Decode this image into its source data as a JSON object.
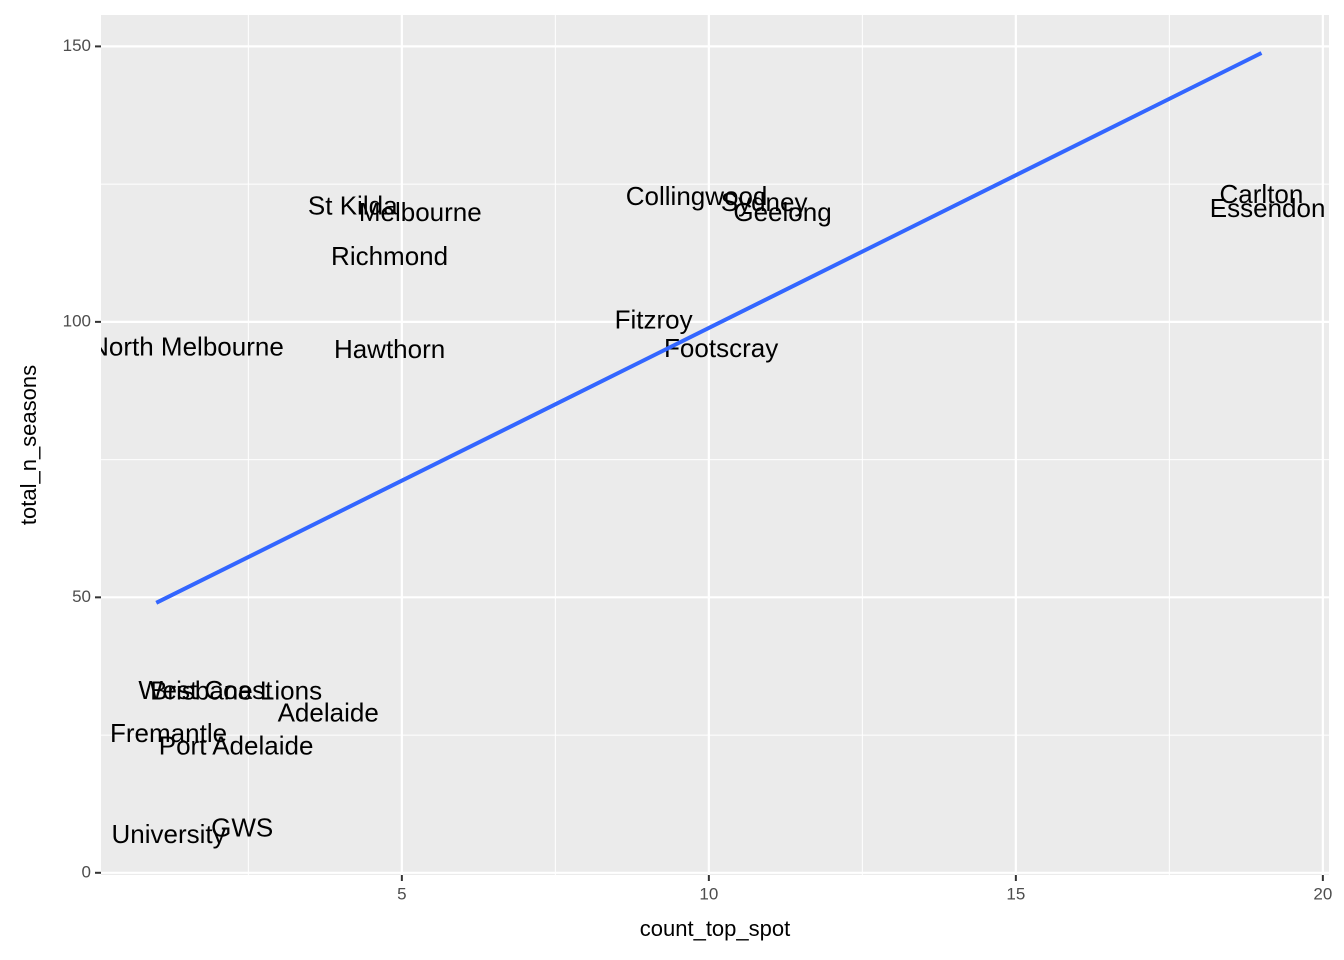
{
  "chart_data": {
    "type": "scatter",
    "x_label": "count_top_spot",
    "y_label": "total_n_seasons",
    "labels": [
      "Carlton",
      "Essendon",
      "Collingwood",
      "Sydney",
      "Geelong",
      "St Kilda",
      "Melbourne",
      "Richmond",
      "Fitzroy",
      "Footscray",
      "North Melbourne",
      "Hawthorn",
      "West Coast",
      "Brisbane Lions",
      "Adelaide",
      "Fremantle",
      "Port Adelaide",
      "University",
      "GWS"
    ],
    "x": [
      19.0,
      19.1,
      9.8,
      10.9,
      11.2,
      4.2,
      5.3,
      4.8,
      9.1,
      10.2,
      1.5,
      4.8,
      1.8,
      2.3,
      3.8,
      1.2,
      2.3,
      1.2,
      2.4
    ],
    "values": [
      122.8,
      120.3,
      122.5,
      121.4,
      119.6,
      120.7,
      119.6,
      111.6,
      100.0,
      94.9,
      95.1,
      94.7,
      32.8,
      32.7,
      28.7,
      25.0,
      22.7,
      6.7,
      7.8
    ],
    "fit": {
      "x": [
        1.0,
        19.0
      ],
      "values": [
        49.0,
        148.8
      ],
      "color": "#3366ff"
    },
    "xlim": [
      0.1,
      20.1
    ],
    "ylim": [
      -0.4,
      155.7
    ],
    "xticks": [
      5,
      10,
      15,
      20
    ],
    "yticks": [
      0,
      50,
      100,
      150
    ],
    "x_minor_grid": [
      2.5,
      7.5,
      12.5,
      17.5
    ],
    "y_minor_grid": [
      25,
      75,
      125
    ],
    "grid": true
  }
}
